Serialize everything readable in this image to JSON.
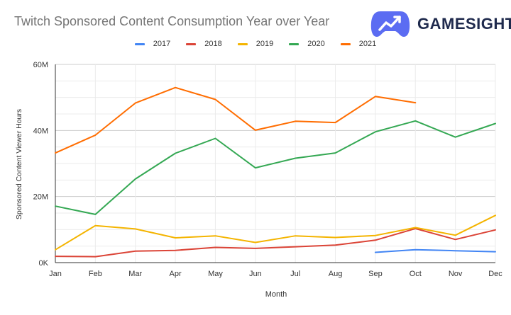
{
  "title": "Twitch Sponsored Content Consumption Year over Year",
  "brand": {
    "name": "GAMESIGHT",
    "icon": "gamepad-trend-icon",
    "color": "#5b6cf2"
  },
  "chart_data": {
    "type": "line",
    "title": "Twitch Sponsored Content Consumption Year over Year",
    "xlabel": "Month",
    "ylabel": "Sponsored Content Viewer Hours",
    "categories": [
      "Jan",
      "Feb",
      "Mar",
      "Apr",
      "May",
      "Jun",
      "Jul",
      "Aug",
      "Sep",
      "Oct",
      "Nov",
      "Dec"
    ],
    "ylim": [
      0,
      60000000
    ],
    "yticks": [
      0,
      20000000,
      40000000,
      60000000
    ],
    "ytick_labels": [
      "0K",
      "20M",
      "40M",
      "60M"
    ],
    "grid": true,
    "legend_position": "top",
    "series": [
      {
        "name": "2017",
        "color": "#4285f4",
        "values": [
          null,
          null,
          null,
          null,
          null,
          null,
          null,
          null,
          3100000,
          3900000,
          3600000,
          3300000
        ]
      },
      {
        "name": "2018",
        "color": "#db4437",
        "values": [
          1900000,
          1800000,
          3500000,
          3700000,
          4600000,
          4300000,
          4800000,
          5300000,
          6800000,
          10300000,
          7000000,
          9900000
        ]
      },
      {
        "name": "2019",
        "color": "#f4b400",
        "values": [
          3900000,
          11200000,
          10200000,
          7500000,
          8100000,
          6100000,
          8100000,
          7600000,
          8200000,
          10600000,
          8300000,
          14300000
        ]
      },
      {
        "name": "2020",
        "color": "#34a853",
        "values": [
          17100000,
          14600000,
          25300000,
          33100000,
          37600000,
          28700000,
          31600000,
          33200000,
          39600000,
          42900000,
          38000000,
          42100000
        ]
      },
      {
        "name": "2021",
        "color": "#ff6d01",
        "values": [
          33200000,
          38600000,
          48300000,
          53000000,
          49400000,
          40100000,
          42800000,
          42400000,
          50300000,
          48400000,
          null,
          null
        ]
      }
    ]
  }
}
